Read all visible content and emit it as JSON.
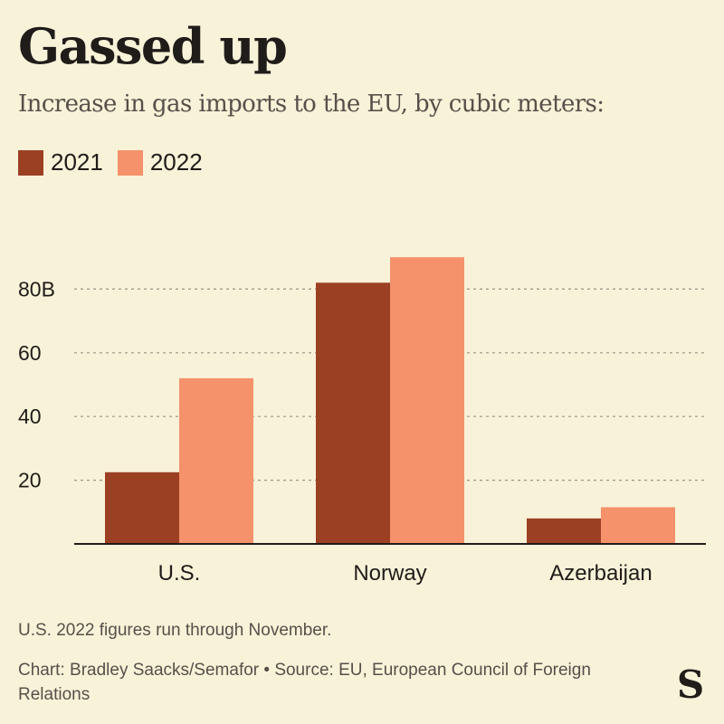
{
  "header": {
    "title": "Gassed up",
    "subtitle": "Increase in gas imports to the EU, by cubic meters:"
  },
  "legend": [
    {
      "label": "2021",
      "color": "#9c4024"
    },
    {
      "label": "2022",
      "color": "#f5916b"
    }
  ],
  "chart_data": {
    "type": "bar",
    "title": "Gassed up",
    "subtitle": "Increase in gas imports to the EU, by cubic meters:",
    "categories": [
      "U.S.",
      "Norway",
      "Azerbaijan"
    ],
    "series": [
      {
        "name": "2021",
        "color": "#9c4024",
        "values": [
          22.5,
          82,
          8
        ]
      },
      {
        "name": "2022",
        "color": "#f5916b",
        "values": [
          52,
          90,
          11.5
        ]
      }
    ],
    "yticks": [
      {
        "value": 20,
        "label": "20"
      },
      {
        "value": 40,
        "label": "40"
      },
      {
        "value": 60,
        "label": "60"
      },
      {
        "value": 80,
        "label": "80B"
      }
    ],
    "ylim": [
      0,
      100
    ],
    "xlabel": "",
    "ylabel": "",
    "grid": true,
    "legend_position": "top-left"
  },
  "footer": {
    "note": "U.S. 2022 figures run through November.",
    "credit": "Chart: Bradley Saacks/Semafor • Source: EU, European Council of Foreign Relations",
    "logo": "S"
  }
}
